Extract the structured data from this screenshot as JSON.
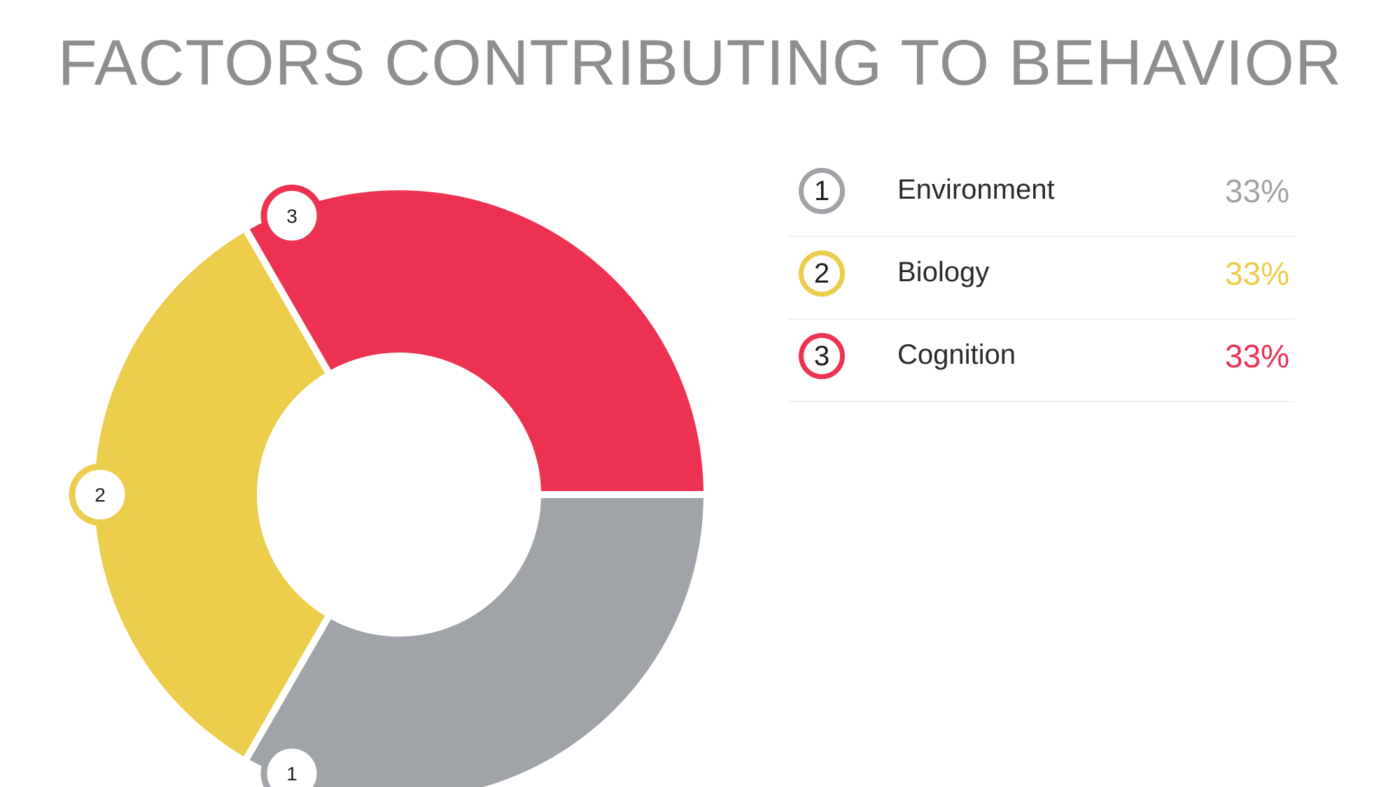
{
  "chart_data": {
    "type": "pie",
    "style": "donut",
    "title": "FACTORS CONTRIBUTING TO BEHAVIOR",
    "categories": [
      "Environment",
      "Biology",
      "Cognition"
    ],
    "values": [
      33,
      33,
      33
    ],
    "value_labels": [
      "33%",
      "33%",
      "33%"
    ],
    "markers": [
      "1",
      "2",
      "3"
    ],
    "colors": [
      "#a0a3a7",
      "#ebcc4b",
      "#ed3251"
    ],
    "legend_placement": "right"
  }
}
